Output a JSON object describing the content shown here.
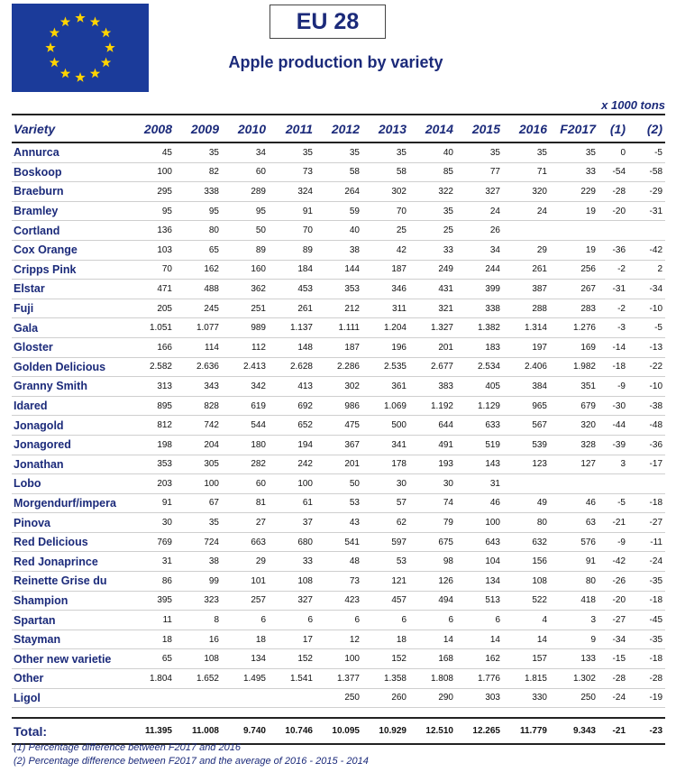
{
  "header": {
    "title": "EU 28",
    "subtitle": "Apple production by variety",
    "unit": "x 1000 tons"
  },
  "columns": [
    "Variety",
    "2008",
    "2009",
    "2010",
    "2011",
    "2012",
    "2013",
    "2014",
    "2015",
    "2016",
    "F2017",
    "(1)",
    "(2)"
  ],
  "rows": [
    {
      "variety": "Annurca",
      "values": [
        "45",
        "35",
        "34",
        "35",
        "35",
        "35",
        "40",
        "35",
        "35",
        "35",
        "0",
        "-5"
      ]
    },
    {
      "variety": "Boskoop",
      "values": [
        "100",
        "82",
        "60",
        "73",
        "58",
        "58",
        "85",
        "77",
        "71",
        "33",
        "-54",
        "-58"
      ]
    },
    {
      "variety": "Braeburn",
      "values": [
        "295",
        "338",
        "289",
        "324",
        "264",
        "302",
        "322",
        "327",
        "320",
        "229",
        "-28",
        "-29"
      ]
    },
    {
      "variety": "Bramley",
      "values": [
        "95",
        "95",
        "95",
        "91",
        "59",
        "70",
        "35",
        "24",
        "24",
        "19",
        "-20",
        "-31"
      ]
    },
    {
      "variety": "Cortland",
      "values": [
        "136",
        "80",
        "50",
        "70",
        "40",
        "25",
        "25",
        "26",
        "",
        "",
        "",
        ""
      ]
    },
    {
      "variety": "Cox Orange",
      "values": [
        "103",
        "65",
        "89",
        "89",
        "38",
        "42",
        "33",
        "34",
        "29",
        "19",
        "-36",
        "-42"
      ]
    },
    {
      "variety": "Cripps Pink",
      "values": [
        "70",
        "162",
        "160",
        "184",
        "144",
        "187",
        "249",
        "244",
        "261",
        "256",
        "-2",
        "2"
      ]
    },
    {
      "variety": "Elstar",
      "values": [
        "471",
        "488",
        "362",
        "453",
        "353",
        "346",
        "431",
        "399",
        "387",
        "267",
        "-31",
        "-34"
      ]
    },
    {
      "variety": "Fuji",
      "values": [
        "205",
        "245",
        "251",
        "261",
        "212",
        "311",
        "321",
        "338",
        "288",
        "283",
        "-2",
        "-10"
      ]
    },
    {
      "variety": "Gala",
      "values": [
        "1.051",
        "1.077",
        "989",
        "1.137",
        "1.111",
        "1.204",
        "1.327",
        "1.382",
        "1.314",
        "1.276",
        "-3",
        "-5"
      ]
    },
    {
      "variety": "Gloster",
      "values": [
        "166",
        "114",
        "112",
        "148",
        "187",
        "196",
        "201",
        "183",
        "197",
        "169",
        "-14",
        "-13"
      ]
    },
    {
      "variety": "Golden Delicious",
      "values": [
        "2.582",
        "2.636",
        "2.413",
        "2.628",
        "2.286",
        "2.535",
        "2.677",
        "2.534",
        "2.406",
        "1.982",
        "-18",
        "-22"
      ]
    },
    {
      "variety": "Granny Smith",
      "values": [
        "313",
        "343",
        "342",
        "413",
        "302",
        "361",
        "383",
        "405",
        "384",
        "351",
        "-9",
        "-10"
      ]
    },
    {
      "variety": "Idared",
      "values": [
        "895",
        "828",
        "619",
        "692",
        "986",
        "1.069",
        "1.192",
        "1.129",
        "965",
        "679",
        "-30",
        "-38"
      ]
    },
    {
      "variety": "Jonagold",
      "values": [
        "812",
        "742",
        "544",
        "652",
        "475",
        "500",
        "644",
        "633",
        "567",
        "320",
        "-44",
        "-48"
      ]
    },
    {
      "variety": "Jonagored",
      "values": [
        "198",
        "204",
        "180",
        "194",
        "367",
        "341",
        "491",
        "519",
        "539",
        "328",
        "-39",
        "-36"
      ]
    },
    {
      "variety": "Jonathan",
      "values": [
        "353",
        "305",
        "282",
        "242",
        "201",
        "178",
        "193",
        "143",
        "123",
        "127",
        "3",
        "-17"
      ]
    },
    {
      "variety": "Lobo",
      "values": [
        "203",
        "100",
        "60",
        "100",
        "50",
        "30",
        "30",
        "31",
        "",
        "",
        "",
        ""
      ]
    },
    {
      "variety": "Morgendurf/impera",
      "values": [
        "91",
        "67",
        "81",
        "61",
        "53",
        "57",
        "74",
        "46",
        "49",
        "46",
        "-5",
        "-18"
      ]
    },
    {
      "variety": "Pinova",
      "values": [
        "30",
        "35",
        "27",
        "37",
        "43",
        "62",
        "79",
        "100",
        "80",
        "63",
        "-21",
        "-27"
      ]
    },
    {
      "variety": "Red Delicious",
      "values": [
        "769",
        "724",
        "663",
        "680",
        "541",
        "597",
        "675",
        "643",
        "632",
        "576",
        "-9",
        "-11"
      ]
    },
    {
      "variety": "Red Jonaprince",
      "values": [
        "31",
        "38",
        "29",
        "33",
        "48",
        "53",
        "98",
        "104",
        "156",
        "91",
        "-42",
        "-24"
      ]
    },
    {
      "variety": "Reinette Grise du",
      "values": [
        "86",
        "99",
        "101",
        "108",
        "73",
        "121",
        "126",
        "134",
        "108",
        "80",
        "-26",
        "-35"
      ]
    },
    {
      "variety": "Shampion",
      "values": [
        "395",
        "323",
        "257",
        "327",
        "423",
        "457",
        "494",
        "513",
        "522",
        "418",
        "-20",
        "-18"
      ]
    },
    {
      "variety": "Spartan",
      "values": [
        "11",
        "8",
        "6",
        "6",
        "6",
        "6",
        "6",
        "6",
        "4",
        "3",
        "-27",
        "-45"
      ]
    },
    {
      "variety": "Stayman",
      "values": [
        "18",
        "16",
        "18",
        "17",
        "12",
        "18",
        "14",
        "14",
        "14",
        "9",
        "-34",
        "-35"
      ]
    },
    {
      "variety": "Other new varietie",
      "values": [
        "65",
        "108",
        "134",
        "152",
        "100",
        "152",
        "168",
        "162",
        "157",
        "133",
        "-15",
        "-18"
      ]
    },
    {
      "variety": "Other",
      "values": [
        "1.804",
        "1.652",
        "1.495",
        "1.541",
        "1.377",
        "1.358",
        "1.808",
        "1.776",
        "1.815",
        "1.302",
        "-28",
        "-28"
      ]
    },
    {
      "variety": "Ligol",
      "values": [
        "",
        "",
        "",
        "",
        "250",
        "260",
        "290",
        "303",
        "330",
        "250",
        "-24",
        "-19"
      ]
    }
  ],
  "total": {
    "label": "Total:",
    "values": [
      "11.395",
      "11.008",
      "9.740",
      "10.746",
      "10.095",
      "10.929",
      "12.510",
      "12.265",
      "11.779",
      "9.343",
      "-21",
      "-23"
    ]
  },
  "footnotes": [
    "(1) Percentage difference between F2017 and 2016",
    "(2) Percentage difference between F2017 and the average of 2016 - 2015 - 2014"
  ],
  "colors": {
    "flag_blue": "#1b3b9a",
    "flag_star": "#ffd400",
    "text_blue": "#1b2a7a"
  }
}
